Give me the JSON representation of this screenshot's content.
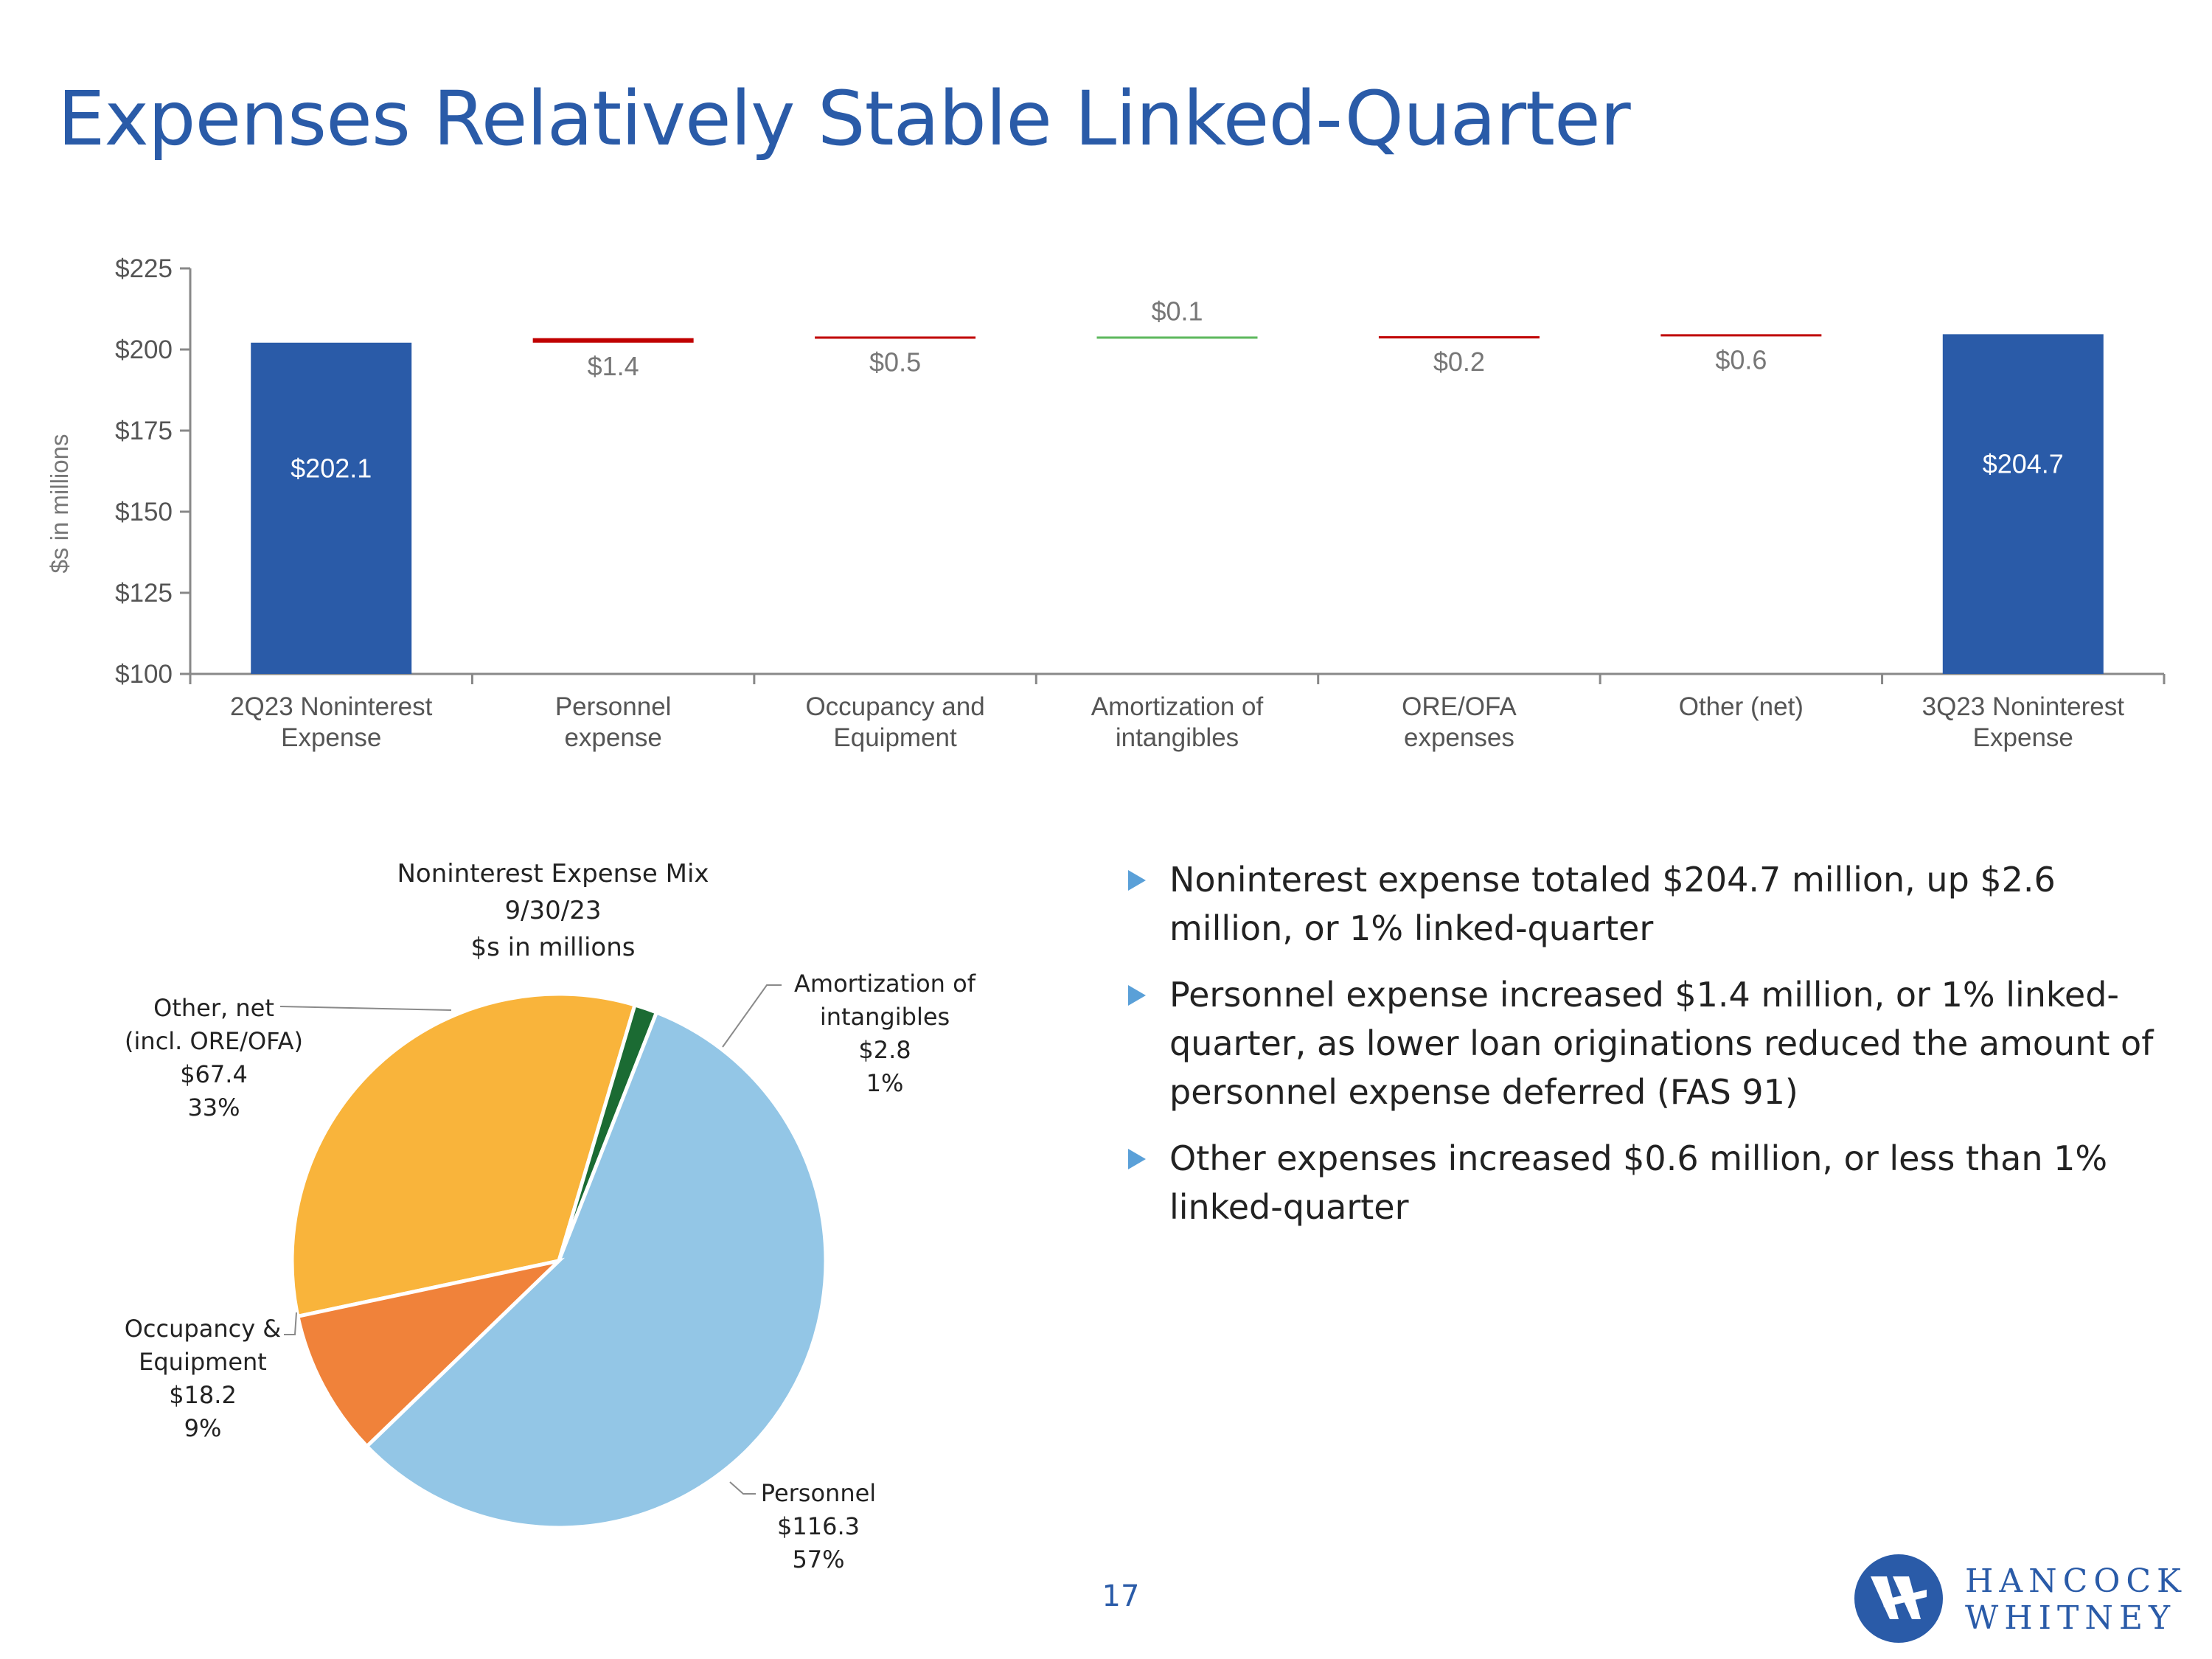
{
  "title": "Expenses Relatively Stable Linked-Quarter",
  "page_number": "17",
  "logo": {
    "line1": "HANCOCK",
    "line2": "WHITNEY"
  },
  "pie_title": [
    "Noninterest Expense Mix",
    "9/30/23",
    "$s in millions"
  ],
  "pie_labels": {
    "other": [
      "Other, net",
      "(incl. ORE/OFA)",
      "$67.4",
      "33%"
    ],
    "amortization": [
      "Amortization of",
      "intangibles",
      "$2.8",
      "1%"
    ],
    "occupancy": [
      "Occupancy &",
      "Equipment",
      "$18.2",
      "9%"
    ],
    "personnel": [
      "Personnel",
      "$116.3",
      "57%"
    ]
  },
  "bullets": [
    "Noninterest expense totaled $204.7 million, up $2.6 million, or 1% linked-quarter",
    "Personnel expense increased $1.4 million, or 1% linked-quarter, as lower loan originations reduced the amount of personnel expense deferred (FAS 91)",
    "Other expenses increased $0.6 million, or less than 1% linked-quarter"
  ],
  "colors": {
    "title": "#2a5ba8",
    "total_bar": "#2a5ba8",
    "increase": "#c00000",
    "decrease": "#5cb85c",
    "pie_other": "#f9b43b",
    "pie_amortization": "#1b6b33",
    "pie_personnel": "#93c6e6",
    "pie_occupancy": "#f0823a"
  },
  "chart_data": [
    {
      "type": "bar",
      "subtype": "waterfall",
      "ylabel": "$s in millions",
      "ylim": [
        100,
        225
      ],
      "yticks": [
        "$100",
        "$125",
        "$150",
        "$175",
        "$200",
        "$225"
      ],
      "ytick_values": [
        100,
        125,
        150,
        175,
        200,
        225
      ],
      "categories": [
        [
          "2Q23 Noninterest",
          "Expense"
        ],
        [
          "Personnel",
          "expense"
        ],
        [
          "Occupancy and",
          "Equipment"
        ],
        [
          "Amortization of",
          "intangibles"
        ],
        [
          "ORE/OFA",
          "expenses"
        ],
        [
          "Other (net)"
        ],
        [
          "3Q23 Noninterest",
          "Expense"
        ]
      ],
      "values": [
        202.1,
        1.4,
        0.5,
        -0.1,
        0.2,
        0.6,
        204.7
      ],
      "kinds": [
        "total",
        "increase",
        "increase",
        "decrease",
        "increase",
        "increase",
        "total"
      ],
      "data_labels": [
        "$202.1",
        "$1.4",
        "$0.5",
        "$0.1",
        "$0.2",
        "$0.6",
        "$204.7"
      ],
      "grid": false
    },
    {
      "type": "pie",
      "title": "Noninterest Expense Mix 9/30/23 $s in millions",
      "labels": [
        "Other, net (incl. ORE/OFA)",
        "Amortization of intangibles",
        "Personnel",
        "Occupancy & Equipment"
      ],
      "values": [
        67.4,
        2.8,
        116.3,
        18.2
      ],
      "percents": [
        33,
        1,
        57,
        9
      ]
    }
  ]
}
